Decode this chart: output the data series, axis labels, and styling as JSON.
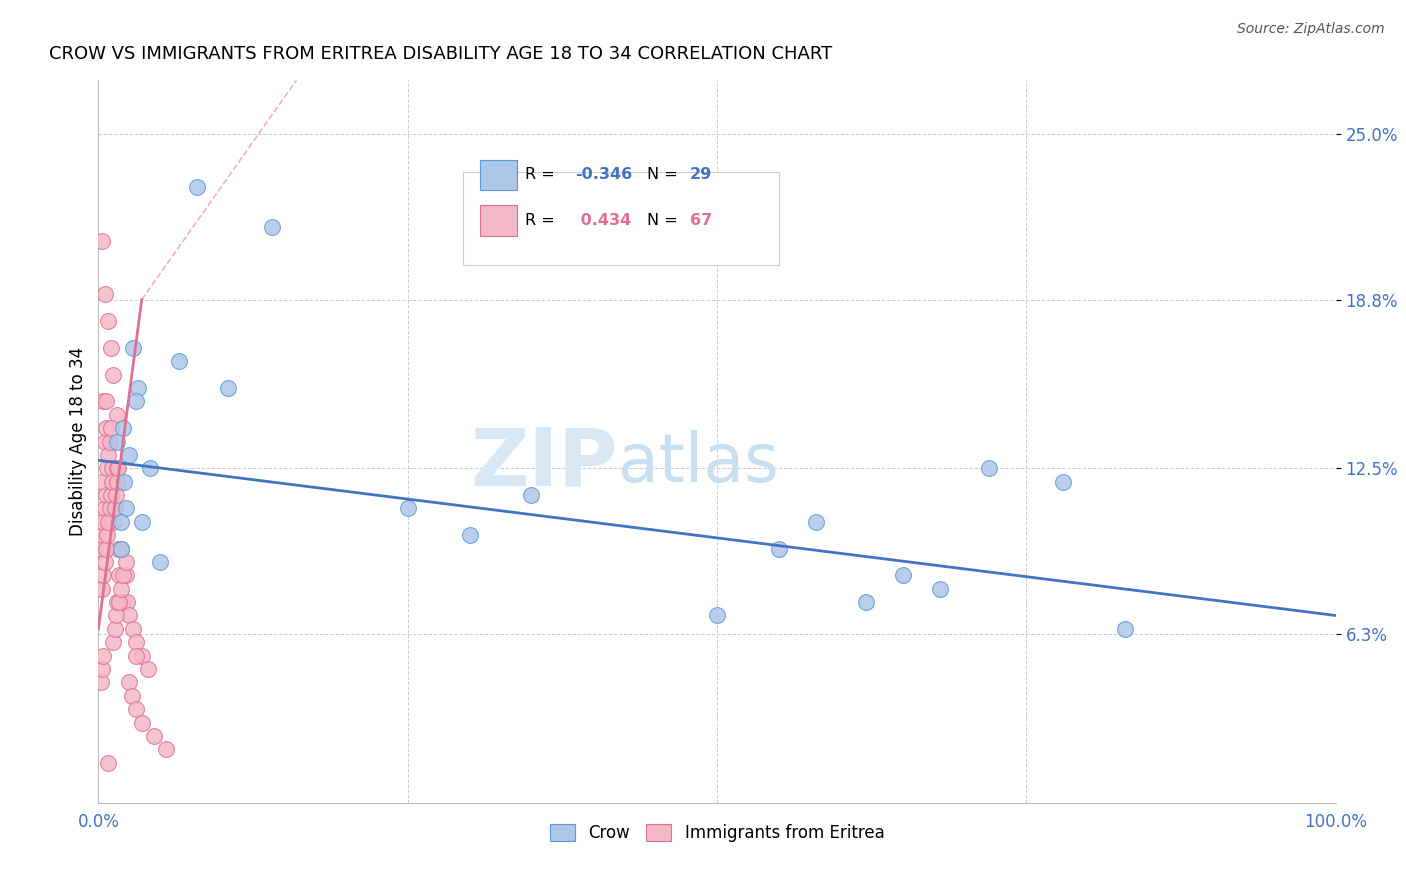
{
  "title": "CROW VS IMMIGRANTS FROM ERITREA DISABILITY AGE 18 TO 34 CORRELATION CHART",
  "source": "Source: ZipAtlas.com",
  "ylabel": "Disability Age 18 to 34",
  "xlim": [
    0.0,
    100.0
  ],
  "ylim": [
    0.0,
    27.0
  ],
  "yticks": [
    6.3,
    12.5,
    18.8,
    25.0
  ],
  "ytick_labels": [
    "6.3%",
    "12.5%",
    "18.8%",
    "25.0%"
  ],
  "xticks": [
    0.0,
    25.0,
    50.0,
    75.0,
    100.0
  ],
  "xtick_labels": [
    "0.0%",
    "",
    "",
    "",
    "100.0%"
  ],
  "crow_R": "-0.346",
  "crow_N": "29",
  "eritrea_R": "0.434",
  "eritrea_N": "67",
  "crow_color": "#aec6e8",
  "crow_edge_color": "#5b9bd5",
  "eritrea_color": "#f4b8c8",
  "eritrea_edge_color": "#e07090",
  "blue_line_color": "#4472c4",
  "pink_line_color": "#e07090",
  "grid_color": "#c8c8c8",
  "axis_label_color": "#4472c4",
  "crow_points_x": [
    1.5,
    2.0,
    8.0,
    14.0,
    2.8,
    3.2,
    2.5,
    6.5,
    10.5,
    2.2,
    3.5,
    4.2,
    5.0,
    1.8,
    1.8,
    2.1,
    3.0,
    35.0,
    55.0,
    62.0,
    68.0,
    25.0,
    30.0,
    65.0,
    58.0,
    72.0,
    78.0,
    50.0,
    83.0
  ],
  "crow_points_y": [
    13.5,
    14.0,
    23.0,
    21.5,
    17.0,
    15.5,
    13.0,
    16.5,
    15.5,
    11.0,
    10.5,
    12.5,
    9.0,
    9.5,
    10.5,
    12.0,
    15.0,
    11.5,
    9.5,
    7.5,
    8.0,
    11.0,
    10.0,
    8.5,
    10.5,
    12.5,
    12.0,
    7.0,
    6.5
  ],
  "eritrea_points_x": [
    0.3,
    0.5,
    0.4,
    0.6,
    0.8,
    0.3,
    0.5,
    0.6,
    1.0,
    1.5,
    1.2,
    0.2,
    0.3,
    0.4,
    0.5,
    0.6,
    0.7,
    0.8,
    0.9,
    1.0,
    1.1,
    1.2,
    1.3,
    1.5,
    1.6,
    1.7,
    1.8,
    2.0,
    2.2,
    2.3,
    2.5,
    2.8,
    3.0,
    3.5,
    4.0,
    3.0,
    0.3,
    0.4,
    0.5,
    0.6,
    0.7,
    0.8,
    0.9,
    1.0,
    1.1,
    1.2,
    1.3,
    1.4,
    1.5,
    1.3,
    1.4,
    1.5,
    1.6,
    1.7,
    1.8,
    2.0,
    2.2,
    2.5,
    2.7,
    3.0,
    3.5,
    4.5,
    5.5,
    0.2,
    0.3,
    0.4,
    0.8
  ],
  "eritrea_points_y": [
    21.0,
    19.0,
    15.0,
    15.0,
    18.0,
    12.0,
    13.5,
    14.0,
    17.0,
    14.5,
    16.0,
    9.5,
    10.0,
    10.5,
    11.0,
    11.5,
    12.5,
    13.0,
    13.5,
    14.0,
    12.5,
    10.5,
    11.0,
    12.5,
    9.5,
    8.5,
    9.5,
    7.5,
    8.5,
    7.5,
    7.0,
    6.5,
    6.0,
    5.5,
    5.0,
    5.5,
    8.0,
    8.5,
    9.0,
    9.5,
    10.0,
    10.5,
    11.0,
    11.5,
    12.0,
    6.0,
    6.5,
    7.0,
    7.5,
    11.0,
    11.5,
    12.0,
    12.5,
    7.5,
    8.0,
    8.5,
    9.0,
    4.5,
    4.0,
    3.5,
    3.0,
    2.5,
    2.0,
    4.5,
    5.0,
    5.5,
    1.5
  ],
  "blue_line_x0": 0.0,
  "blue_line_x1": 100.0,
  "blue_line_y0": 12.8,
  "blue_line_y1": 7.0,
  "pink_solid_x0": 0.0,
  "pink_solid_x1": 3.5,
  "pink_solid_y0": 6.5,
  "pink_solid_y1": 18.8,
  "pink_dash_x0": 3.5,
  "pink_dash_x1": 16.0,
  "pink_dash_y0": 18.8,
  "pink_dash_y1": 27.0
}
